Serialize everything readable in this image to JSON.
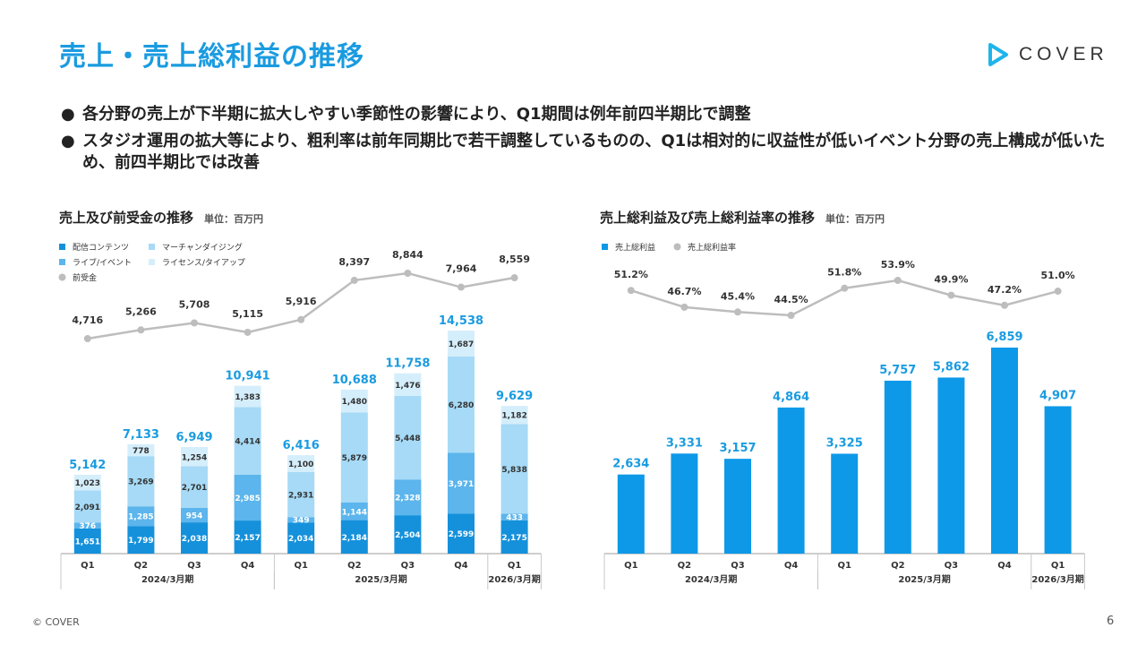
{
  "header": {
    "title": "売上・売上総利益の推移",
    "logo_text": "COVER",
    "logo_icon": "play-triangle-icon"
  },
  "bullets": [
    "各分野の売上が下半期に拡大しやすい季節性の影響により、Q1期間は例年前四半期比で調整",
    "スタジオ運用の拡大等により、粗利率は前年同期比で若干調整しているものの、Q1は相対的に収益性が低いイベント分野の売上構成が低いため、前四半期比では改善"
  ],
  "footer": {
    "copyright": "© COVER",
    "page": "6"
  },
  "colors": {
    "title": "#1a9be0",
    "content": "#1591db",
    "merch": "#a6daf6",
    "live": "#5cb5ec",
    "license": "#d5eefb",
    "advance": "#bdbdbd",
    "gross": "#0d99e8",
    "total_label": "#1a9be0"
  },
  "chart_data": [
    {
      "type": "bar",
      "stacked": true,
      "title": "売上及び前受金の推移",
      "unit": "単位：百万円",
      "categories": [
        "Q1",
        "Q2",
        "Q3",
        "Q4",
        "Q1",
        "Q2",
        "Q3",
        "Q4",
        "Q1"
      ],
      "groups": [
        {
          "label": "2024/3月期",
          "span": 4
        },
        {
          "label": "2025/3月期",
          "span": 4
        },
        {
          "label": "2026/3月期",
          "span": 1
        }
      ],
      "legend": [
        "配信コンテンツ",
        "マーチャンダイジング",
        "ライブ/イベント",
        "ライセンス/タイアップ",
        "前受金"
      ],
      "series": [
        {
          "name": "配信コンテンツ",
          "values": [
            1651,
            1799,
            2038,
            2157,
            2034,
            2184,
            2504,
            2599,
            2175
          ]
        },
        {
          "name": "ライブ/イベント",
          "values": [
            376,
            1285,
            954,
            2985,
            349,
            1144,
            2328,
            3971,
            433
          ]
        },
        {
          "name": "マーチャンダイジング",
          "values": [
            2091,
            3269,
            2701,
            4414,
            2931,
            5879,
            5448,
            6280,
            5838
          ]
        },
        {
          "name": "ライセンス/タイアップ",
          "values": [
            1023,
            778,
            1254,
            1383,
            1100,
            1480,
            1476,
            1687,
            1182
          ]
        }
      ],
      "totals": [
        5142,
        7133,
        6949,
        10941,
        6416,
        10688,
        11758,
        14538,
        9629
      ],
      "line": {
        "name": "前受金",
        "values": [
          4716,
          5266,
          5708,
          5115,
          5916,
          8397,
          8844,
          7964,
          8559
        ]
      }
    },
    {
      "type": "bar",
      "title": "売上総利益及び売上総利益率の推移",
      "unit": "単位：百万円",
      "categories": [
        "Q1",
        "Q2",
        "Q3",
        "Q4",
        "Q1",
        "Q2",
        "Q3",
        "Q4",
        "Q1"
      ],
      "groups": [
        {
          "label": "2024/3月期",
          "span": 4
        },
        {
          "label": "2025/3月期",
          "span": 4
        },
        {
          "label": "2026/3月期",
          "span": 1
        }
      ],
      "legend": [
        "売上総利益",
        "売上総利益率"
      ],
      "series": [
        {
          "name": "売上総利益",
          "values": [
            2634,
            3331,
            3157,
            4864,
            3325,
            5757,
            5862,
            6859,
            4907
          ]
        }
      ],
      "line": {
        "name": "売上総利益率",
        "values": [
          51.2,
          46.7,
          45.4,
          44.5,
          51.8,
          53.9,
          49.9,
          47.2,
          51.0
        ],
        "labels": [
          "51.2%",
          "46.7%",
          "45.4%",
          "44.5%",
          "51.8%",
          "53.9%",
          "49.9%",
          "47.2%",
          "51.0%"
        ]
      }
    }
  ]
}
